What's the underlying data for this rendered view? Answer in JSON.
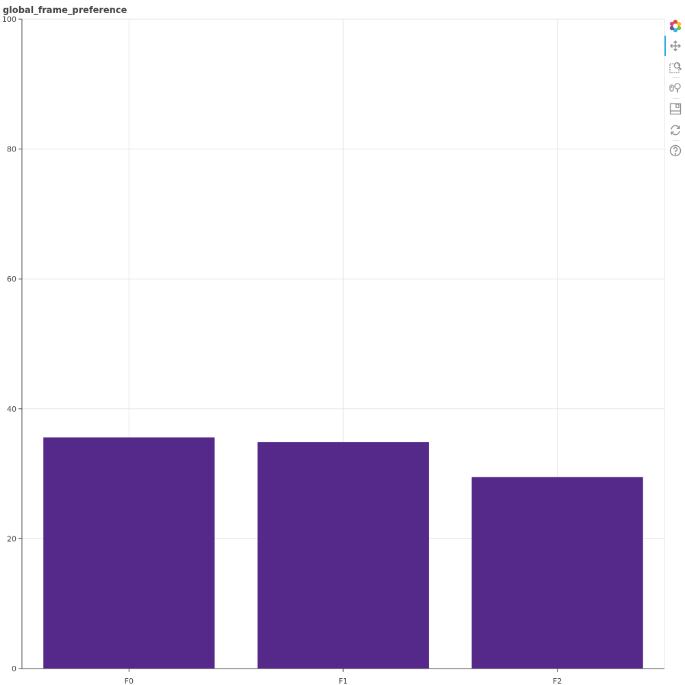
{
  "chart_data": {
    "type": "bar",
    "title": "global_frame_preference",
    "categories": [
      "F0",
      "F1",
      "F2"
    ],
    "values": [
      35.6,
      34.9,
      29.5
    ],
    "ylim": [
      0,
      100
    ],
    "yticks": [
      0,
      20,
      40,
      60,
      80,
      100
    ],
    "xlabel": "",
    "ylabel": "",
    "grid": true,
    "legend": "none",
    "bar_color": "#55298a",
    "grid_color": "#e5e5e5",
    "axis_color": "#444444"
  },
  "toolbar": {
    "tools": [
      {
        "name": "bokeh-logo-icon"
      },
      {
        "name": "pan-icon"
      },
      {
        "name": "box-zoom-icon"
      },
      {
        "name": "wheel-zoom-icon"
      },
      {
        "name": "save-icon"
      },
      {
        "name": "reset-icon"
      },
      {
        "name": "help-icon"
      }
    ]
  }
}
